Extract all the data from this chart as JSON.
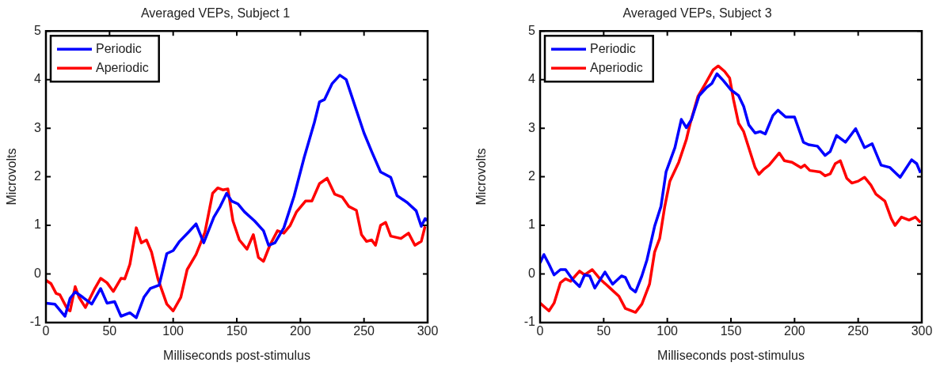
{
  "chart_data": [
    {
      "type": "line",
      "title": "Averaged VEPs, Subject 1",
      "xlabel": "Milliseconds post-stimulus",
      "ylabel": "Microvolts",
      "xlim": [
        0,
        300
      ],
      "xticks": [
        0,
        50,
        100,
        150,
        200,
        250,
        300
      ],
      "ylim": [
        -1,
        5
      ],
      "yticks": [
        -1,
        0,
        1,
        2,
        3,
        4,
        5
      ],
      "grid": false,
      "legend": "top left",
      "marker": "none",
      "line_style": "solid",
      "series": [
        {
          "name": "Periodic",
          "color": "#0000ff",
          "x": [
            0,
            7,
            15,
            19,
            23,
            29,
            36,
            43,
            48,
            54,
            59,
            66,
            71,
            77,
            82,
            89,
            95,
            100,
            105,
            112,
            118,
            124,
            132,
            137,
            142,
            146,
            151,
            156,
            164,
            171,
            175,
            180,
            187,
            195,
            203,
            211,
            215,
            219,
            225,
            231,
            236,
            244,
            250,
            256,
            263,
            271,
            276,
            284,
            291,
            295,
            298,
            300
          ],
          "values": [
            -0.6,
            -0.62,
            -0.87,
            -0.5,
            -0.37,
            -0.48,
            -0.62,
            -0.3,
            -0.6,
            -0.57,
            -0.87,
            -0.8,
            -0.9,
            -0.48,
            -0.3,
            -0.23,
            0.42,
            0.48,
            0.67,
            0.86,
            1.03,
            0.64,
            1.17,
            1.39,
            1.66,
            1.5,
            1.44,
            1.28,
            1.09,
            0.89,
            0.59,
            0.64,
            0.95,
            1.6,
            2.4,
            3.12,
            3.54,
            3.59,
            3.92,
            4.09,
            4.0,
            3.37,
            2.9,
            2.52,
            2.1,
            1.99,
            1.61,
            1.47,
            1.3,
            0.98,
            1.14,
            1.1
          ]
        },
        {
          "name": "Aperiodic",
          "color": "#ff0000",
          "x": [
            0,
            4,
            8,
            11,
            17,
            19,
            23,
            26,
            31,
            38,
            43,
            48,
            53,
            59,
            62,
            66,
            71,
            75,
            79,
            83,
            88,
            95,
            100,
            106,
            111,
            118,
            125,
            131,
            135,
            139,
            143,
            147,
            152,
            158,
            163,
            167,
            171,
            176,
            182,
            187,
            192,
            197,
            204,
            209,
            215,
            221,
            227,
            233,
            238,
            244,
            248,
            252,
            256,
            259,
            263,
            267,
            271,
            279,
            285,
            290,
            295,
            298
          ],
          "values": [
            -0.13,
            -0.2,
            -0.4,
            -0.43,
            -0.73,
            -0.76,
            -0.26,
            -0.48,
            -0.69,
            -0.32,
            -0.09,
            -0.18,
            -0.36,
            -0.09,
            -0.1,
            0.2,
            0.95,
            0.64,
            0.7,
            0.45,
            -0.1,
            -0.62,
            -0.76,
            -0.48,
            0.09,
            0.4,
            0.86,
            1.66,
            1.77,
            1.73,
            1.75,
            1.09,
            0.7,
            0.51,
            0.81,
            0.34,
            0.26,
            0.59,
            0.89,
            0.84,
            1.0,
            1.28,
            1.5,
            1.5,
            1.86,
            1.97,
            1.64,
            1.58,
            1.39,
            1.31,
            0.81,
            0.67,
            0.7,
            0.59,
            1.0,
            1.06,
            0.78,
            0.73,
            0.84,
            0.59,
            0.67,
            0.98
          ]
        }
      ]
    },
    {
      "type": "line",
      "title": "Averaged VEPs, Subject 3",
      "xlabel": "Milliseconds post-stimulus",
      "ylabel": "Microvolts",
      "xlim": [
        0,
        300
      ],
      "xticks": [
        0,
        50,
        100,
        150,
        200,
        250,
        300
      ],
      "ylim": [
        -1,
        5
      ],
      "yticks": [
        -1,
        0,
        1,
        2,
        3,
        4,
        5
      ],
      "grid": false,
      "legend": "top left",
      "marker": "none",
      "line_style": "solid",
      "series": [
        {
          "name": "Periodic",
          "color": "#0000ff",
          "x": [
            0,
            3,
            7,
            11,
            16,
            20,
            26,
            31,
            35,
            39,
            43,
            51,
            57,
            64,
            67,
            71,
            75,
            80,
            84,
            90,
            95,
            99,
            106,
            111,
            115,
            119,
            125,
            131,
            135,
            139,
            144,
            150,
            156,
            160,
            164,
            169,
            173,
            177,
            183,
            187,
            193,
            200,
            207,
            211,
            218,
            224,
            228,
            233,
            240,
            248,
            255,
            261,
            268,
            275,
            283,
            292,
            296,
            299
          ],
          "values": [
            0.23,
            0.4,
            0.2,
            -0.02,
            0.09,
            0.09,
            -0.13,
            -0.26,
            -0.02,
            -0.04,
            -0.29,
            0.04,
            -0.21,
            -0.04,
            -0.07,
            -0.29,
            -0.37,
            -0.04,
            0.29,
            0.98,
            1.39,
            2.1,
            2.6,
            3.18,
            3.01,
            3.18,
            3.67,
            3.84,
            3.92,
            4.12,
            3.98,
            3.79,
            3.67,
            3.45,
            3.07,
            2.9,
            2.93,
            2.88,
            3.26,
            3.37,
            3.23,
            3.23,
            2.71,
            2.66,
            2.63,
            2.44,
            2.52,
            2.85,
            2.71,
            2.99,
            2.6,
            2.68,
            2.24,
            2.19,
            1.99,
            2.35,
            2.27,
            2.08
          ]
        },
        {
          "name": "Aperiodic",
          "color": "#ff0000",
          "x": [
            0,
            7,
            11,
            16,
            20,
            24,
            31,
            35,
            41,
            47,
            55,
            62,
            67,
            75,
            80,
            86,
            90,
            94,
            98,
            102,
            109,
            115,
            118,
            124,
            130,
            136,
            140,
            145,
            149,
            152,
            156,
            160,
            164,
            169,
            172,
            176,
            180,
            188,
            192,
            198,
            205,
            208,
            212,
            220,
            224,
            228,
            232,
            236,
            241,
            245,
            250,
            255,
            260,
            264,
            271,
            276,
            279,
            284,
            290,
            295,
            299
          ],
          "values": [
            -0.6,
            -0.76,
            -0.6,
            -0.18,
            -0.1,
            -0.15,
            0.06,
            -0.02,
            0.09,
            -0.1,
            -0.29,
            -0.46,
            -0.71,
            -0.79,
            -0.62,
            -0.21,
            0.45,
            0.73,
            1.39,
            1.91,
            2.3,
            2.77,
            3.1,
            3.65,
            3.92,
            4.2,
            4.28,
            4.17,
            4.03,
            3.59,
            3.1,
            2.93,
            2.6,
            2.19,
            2.05,
            2.16,
            2.24,
            2.49,
            2.33,
            2.3,
            2.19,
            2.24,
            2.13,
            2.1,
            2.02,
            2.06,
            2.27,
            2.33,
            1.97,
            1.87,
            1.91,
            1.99,
            1.83,
            1.64,
            1.5,
            1.14,
            1.0,
            1.17,
            1.11,
            1.17,
            1.06
          ]
        }
      ]
    }
  ]
}
